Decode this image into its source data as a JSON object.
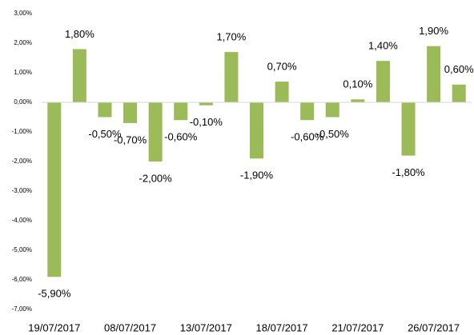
{
  "chart_data": {
    "type": "bar",
    "categories": [
      "19/07/2017",
      null,
      null,
      "08/07/2017",
      null,
      null,
      "13/07/2017",
      null,
      null,
      "18/07/2017",
      null,
      null,
      "21/07/2017",
      null,
      null,
      "26/07/2017",
      null
    ],
    "values": [
      -5.9,
      1.8,
      -0.5,
      -0.7,
      -2.0,
      -0.6,
      -0.1,
      1.7,
      -1.9,
      0.7,
      -0.6,
      -0.5,
      0.1,
      1.4,
      -1.8,
      1.9,
      0.6
    ],
    "value_labels": [
      "-5,90%",
      "1,80%",
      "-0,50%",
      "-0,70%",
      "-2,00%",
      "-0,60%",
      "-0,10%",
      "1,70%",
      "-1,90%",
      "0,70%",
      "-0,60%",
      "-0,50%",
      "0,10%",
      "1,40%",
      "-1,80%",
      "1,90%",
      "0,60%"
    ],
    "color": "#9bbb59",
    "ylim": [
      -7,
      3
    ],
    "yticks": [
      {
        "value": -7,
        "label": "-7,00%"
      },
      {
        "value": -6,
        "label": "-6,00%"
      },
      {
        "value": -5,
        "label": "-5,00%"
      },
      {
        "value": -4,
        "label": "-4,00%"
      },
      {
        "value": -3,
        "label": "-3,00%"
      },
      {
        "value": -2,
        "label": "-2,00%"
      },
      {
        "value": -1,
        "label": "-1,00%"
      },
      {
        "value": 0,
        "label": "0,00%"
      },
      {
        "value": 1,
        "label": "1,00%"
      },
      {
        "value": 2,
        "label": "2,00%"
      },
      {
        "value": 3,
        "label": "3,00%"
      }
    ],
    "grid": false
  }
}
